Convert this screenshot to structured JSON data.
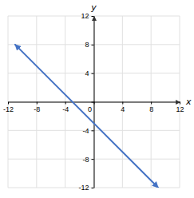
{
  "chart_data": {
    "type": "line",
    "x": [
      -11,
      9
    ],
    "values": [
      8,
      -12
    ],
    "color": "#4472c4",
    "xlim": [
      -12,
      12
    ],
    "ylim": [
      -12,
      12
    ],
    "xticks": [
      -12,
      -8,
      -4,
      0,
      4,
      8,
      12
    ],
    "yticks": [
      -12,
      -8,
      -4,
      0,
      4,
      8,
      12
    ],
    "xlabel": "x",
    "ylabel": "y",
    "grid": true
  }
}
